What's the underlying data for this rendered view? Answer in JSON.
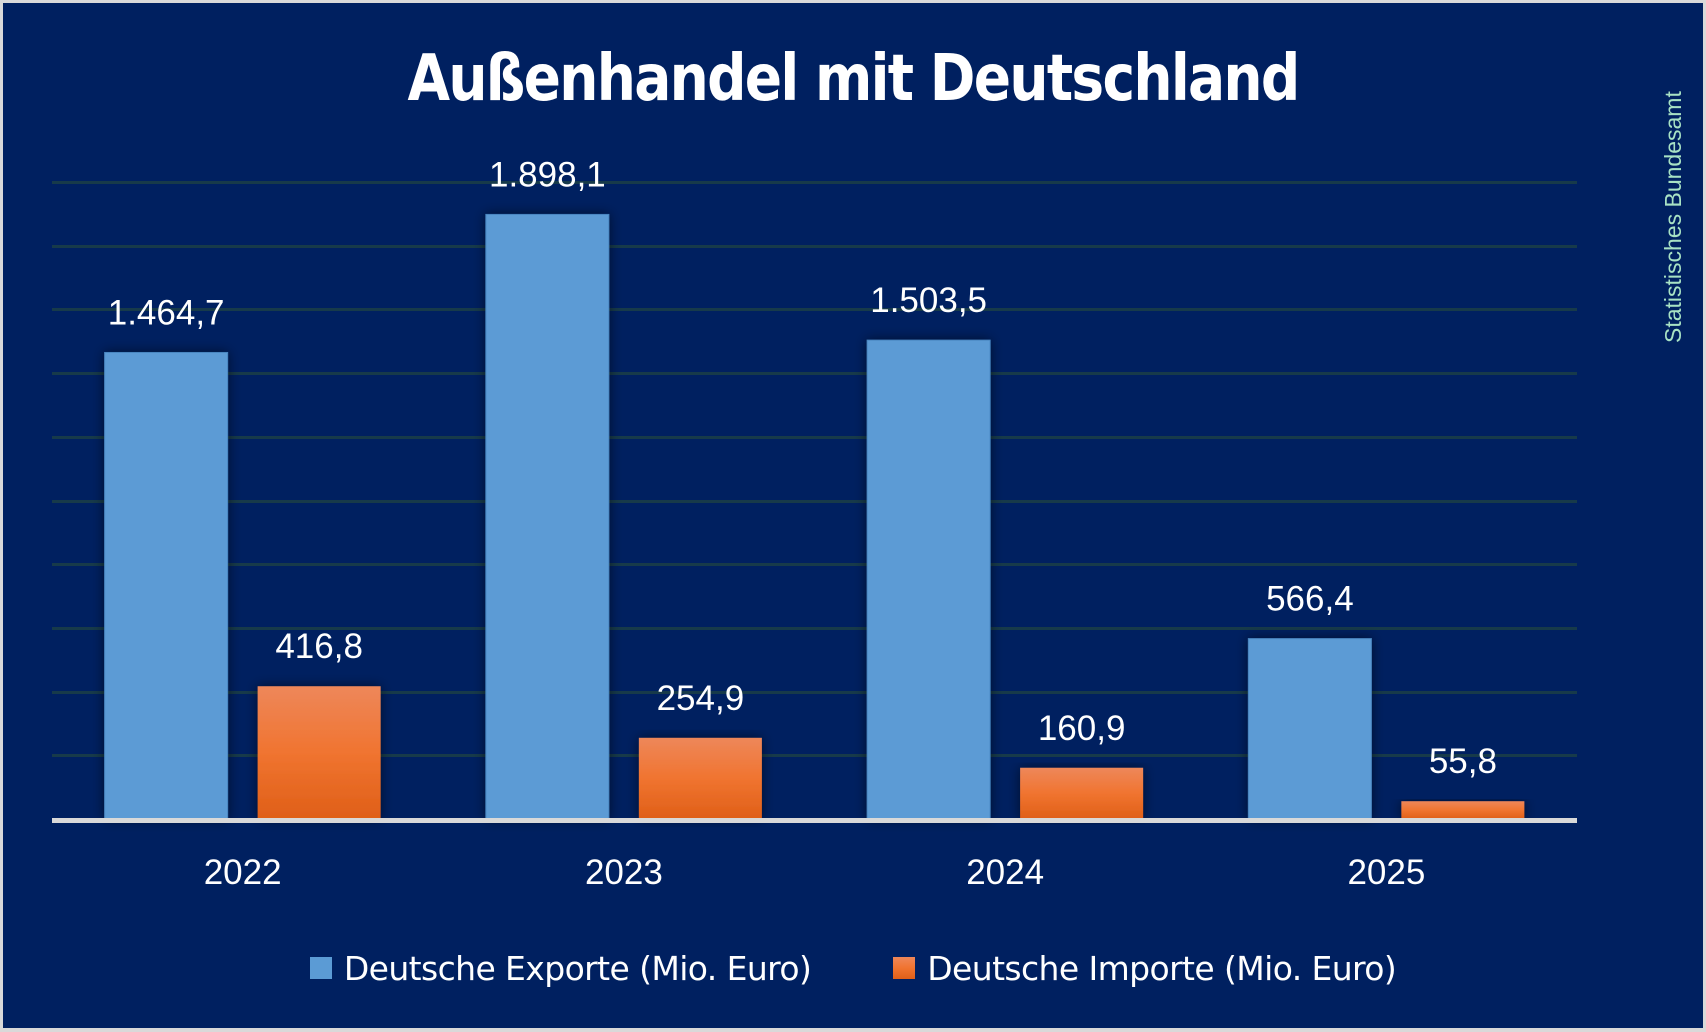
{
  "chart_data": {
    "type": "bar",
    "title": "Außenhandel mit Deutschland",
    "source": "Statistisches Bundesamt",
    "categories": [
      "2022",
      "2023",
      "2024",
      "2025"
    ],
    "series": [
      {
        "name": "Deutsche Exporte (Mio. Euro)",
        "color": "#5b9bd5",
        "values": [
          1464.7,
          1898.1,
          1503.5,
          566.4
        ],
        "labels": [
          "1.464,7",
          "1.898,1",
          "1.503,5",
          "566,4"
        ]
      },
      {
        "name": "Deutsche Importe (Mio. Euro)",
        "color": "#ed7d31",
        "values": [
          416.8,
          254.9,
          160.9,
          55.8
        ],
        "labels": [
          "416,8",
          "254,9",
          "160,9",
          "55,8"
        ]
      }
    ],
    "xlabel": "",
    "ylabel": "",
    "ylim": [
      0,
      2000
    ],
    "ytick_step": 200,
    "y_axis_labels_visible": false,
    "grid": true,
    "legend_position": "bottom",
    "colors": {
      "background": "#002060",
      "frame": "#d9d9d9",
      "gridline": "#173a4a",
      "baseline": "#d9d9d9",
      "text": "#ffffff",
      "source_text": "#a8e2c4"
    }
  }
}
